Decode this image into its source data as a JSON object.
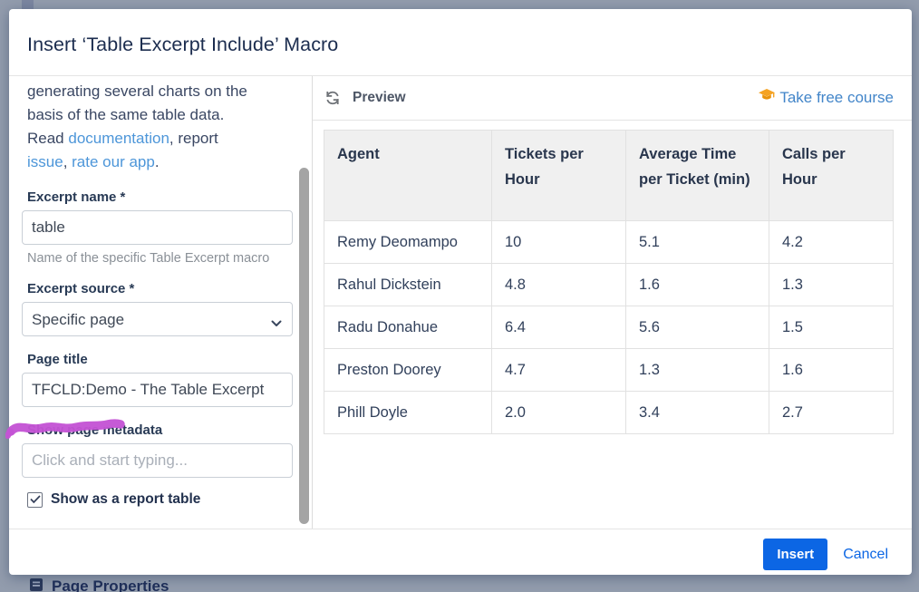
{
  "colors": {
    "accent_blue": "#0C66E4",
    "link_blue": "#4D96D9",
    "course_orange": "#F5A323",
    "highlight_purple": "#C453D4",
    "backdrop_gray": "#929CAD"
  },
  "background": {
    "page_properties_label": "Page Properties"
  },
  "dialog": {
    "title": "Insert ‘Table Excerpt Include’ Macro"
  },
  "sidebar": {
    "intro": {
      "line1": "generating several charts on the",
      "line2": "basis of the same table data.",
      "line3_pre": "Read ",
      "doc_link": "documentation",
      "line3_mid": ", report",
      "issue_link": "issue",
      "line4_mid": ", ",
      "rate_link": "rate our app",
      "line4_end": "."
    },
    "form": {
      "excerpt_name": {
        "label": "Excerpt name *",
        "value": "table",
        "help": "Name of the specific Table Excerpt macro"
      },
      "excerpt_source": {
        "label": "Excerpt source *",
        "value": "Specific page"
      },
      "page_title": {
        "label": "Page title",
        "value": "TFCLD:Demo - The Table Excerpt"
      },
      "page_metadata": {
        "label": "Show page metadata",
        "placeholder": "Click and start typing..."
      },
      "report_table": {
        "label": "Show as a report table",
        "checked": true
      }
    }
  },
  "preview": {
    "title": "Preview",
    "course_link": "Take free course",
    "table": {
      "headers": [
        "Agent",
        "Tickets per Hour",
        "Average Time per Ticket (min)",
        "Calls per Hour"
      ],
      "rows": [
        [
          "Remy Deomampo",
          "10",
          "5.1",
          "4.2"
        ],
        [
          "Rahul Dickstein",
          "4.8",
          "1.6",
          "1.3"
        ],
        [
          "Radu Donahue",
          "6.4",
          "5.6",
          "1.5"
        ],
        [
          "Preston Doorey",
          "4.7",
          "1.3",
          "1.6"
        ],
        [
          "Phill Doyle",
          "2.0",
          "3.4",
          "2.7"
        ]
      ]
    }
  },
  "footer": {
    "insert_label": "Insert",
    "cancel_label": "Cancel"
  }
}
